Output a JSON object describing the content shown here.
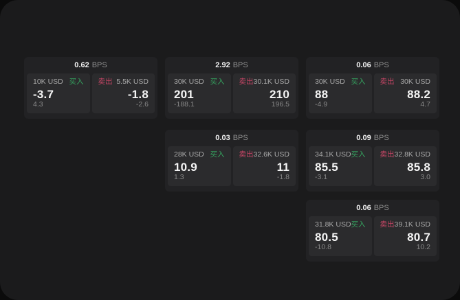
{
  "labels": {
    "bps_unit": "BPS",
    "buy": "买入",
    "sell": "卖出"
  },
  "colors": {
    "page_bg": "#0b0b0b",
    "panel_bg": "#1b1b1c",
    "card_bg": "#222224",
    "tile_bg": "#2b2b2d",
    "text_primary": "#f5f5f5",
    "text_muted": "#a9a9a9",
    "text_dim": "#878787",
    "buy_green": "#35a25f",
    "sell_red": "#c84666"
  },
  "cards": [
    {
      "bps": "0.62",
      "buy": {
        "amount": "10K USD",
        "price": "-3.7",
        "delta": "4.3"
      },
      "sell": {
        "amount": "5.5K USD",
        "price": "-1.8",
        "delta": "-2.6"
      }
    },
    {
      "bps": "2.92",
      "buy": {
        "amount": "30K USD",
        "price": "201",
        "delta": "-188.1"
      },
      "sell": {
        "amount": "30.1K USD",
        "price": "210",
        "delta": "196.5"
      }
    },
    {
      "bps": "0.06",
      "buy": {
        "amount": "30K USD",
        "price": "88",
        "delta": "-4.9"
      },
      "sell": {
        "amount": "30K USD",
        "price": "88.2",
        "delta": "4.7"
      }
    },
    {
      "bps": "0.03",
      "buy": {
        "amount": "28K USD",
        "price": "10.9",
        "delta": "1.3"
      },
      "sell": {
        "amount": "32.6K USD",
        "price": "11",
        "delta": "-1.8"
      }
    },
    {
      "bps": "0.09",
      "buy": {
        "amount": "34.1K USD",
        "price": "85.5",
        "delta": "-3.1"
      },
      "sell": {
        "amount": "32.8K USD",
        "price": "85.8",
        "delta": "3.0"
      }
    },
    {
      "bps": "0.06",
      "buy": {
        "amount": "31.8K USD",
        "price": "80.5",
        "delta": "-10.8"
      },
      "sell": {
        "amount": "39.1K USD",
        "price": "80.7",
        "delta": "10.2"
      }
    }
  ]
}
